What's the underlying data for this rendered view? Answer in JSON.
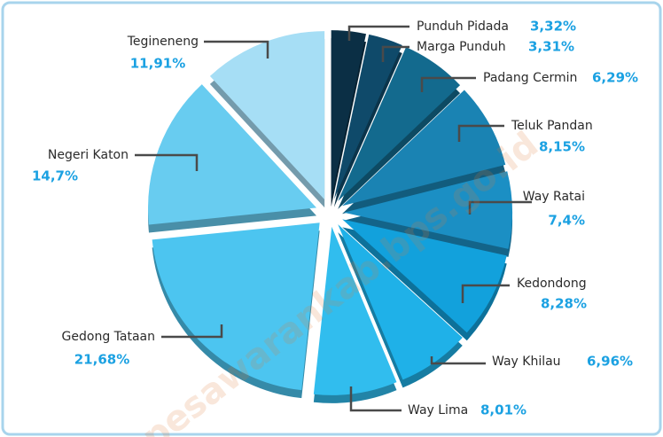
{
  "chart_data": {
    "type": "pie",
    "categories": [
      "Punduh Pidada",
      "Marga Punduh",
      "Padang Cermin",
      "Teluk Pandan",
      "Way Ratai",
      "Kedondong",
      "Way Khilau",
      "Way Lima",
      "Gedong Tataan",
      "Negeri Katon",
      "Tegineneng"
    ],
    "values": [
      3.32,
      3.31,
      6.29,
      8.15,
      7.4,
      8.28,
      6.96,
      8.01,
      21.68,
      14.7,
      11.91
    ],
    "value_labels": [
      "3,32%",
      "3,31%",
      "6,29%",
      "8,15%",
      "7,4%",
      "8,28%",
      "6,96%",
      "8,01%",
      "21,68%",
      "14,7%",
      "11,91%"
    ],
    "colors": [
      "#0b2f45",
      "#0f4a6a",
      "#136a8e",
      "#1a83b3",
      "#1b8fc4",
      "#12a1dc",
      "#1fb1e8",
      "#31bdee",
      "#4cc5f0",
      "#68ccf0",
      "#a6def5"
    ],
    "watermark": "pesawarankab.bps.go.id"
  }
}
